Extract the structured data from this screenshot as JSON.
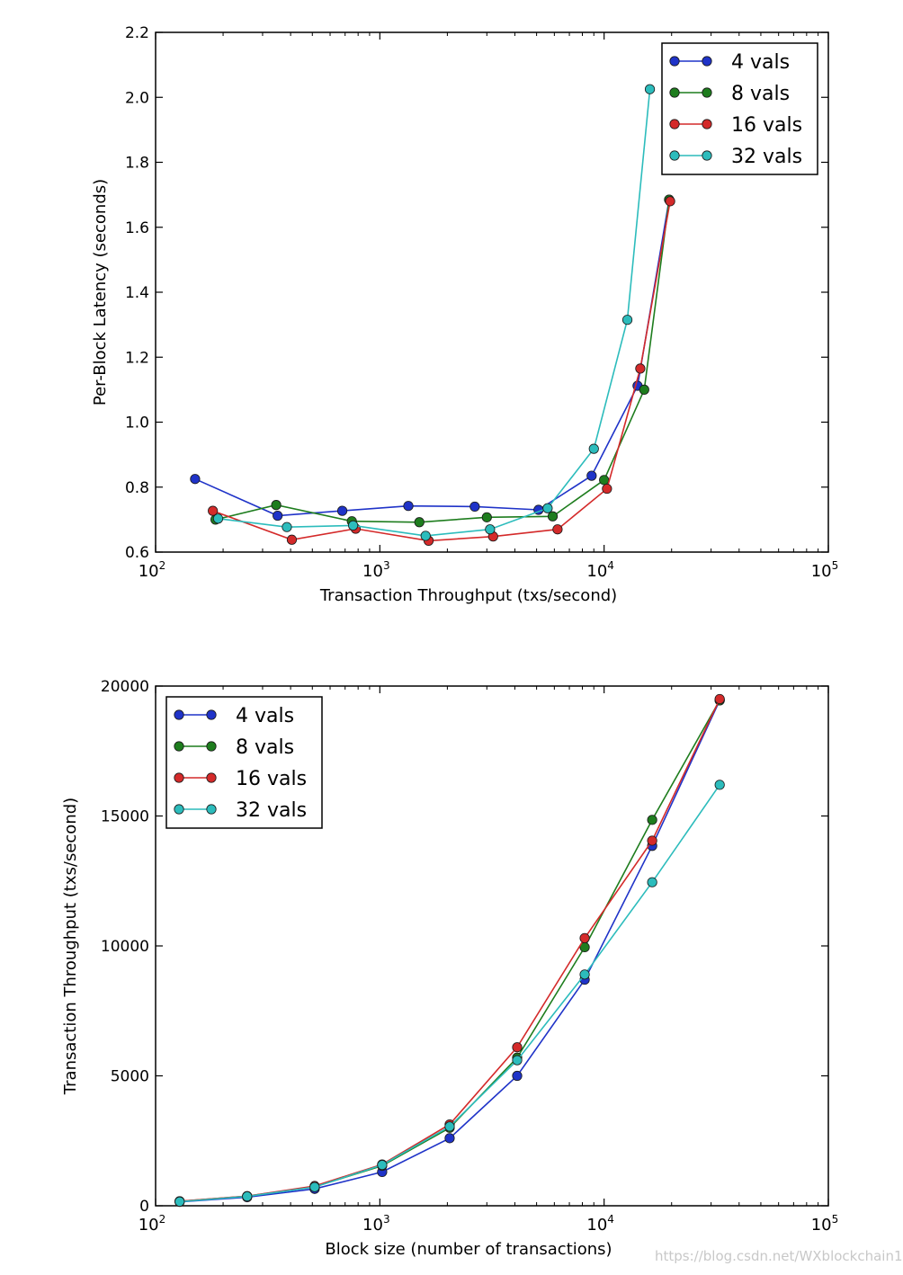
{
  "watermark": "https://blog.csdn.net/WXblockchain1",
  "chart_data": [
    {
      "type": "line",
      "xscale": "log",
      "xlim": [
        100,
        100000
      ],
      "ylim": [
        0.6,
        2.2
      ],
      "xticks": [
        100,
        1000,
        10000,
        100000
      ],
      "xtick_labels": [
        {
          "base": "10",
          "exp": "2"
        },
        {
          "base": "10",
          "exp": "3"
        },
        {
          "base": "10",
          "exp": "4"
        },
        {
          "base": "10",
          "exp": "5"
        }
      ],
      "yticks": [
        0.6,
        0.8,
        1.0,
        1.2,
        1.4,
        1.6,
        1.8,
        2.0,
        2.2
      ],
      "ytick_labels": [
        "0.6",
        "0.8",
        "1.0",
        "1.2",
        "1.4",
        "1.6",
        "1.8",
        "2.0",
        "2.2"
      ],
      "title": "",
      "xlabel": "Transaction Throughput (txs/second)",
      "ylabel": "Per-Block Latency (seconds)",
      "grid": false,
      "legend_position": "top-right",
      "series": [
        {
          "name": "4 vals",
          "color": "#1f33c8",
          "x": [
            150,
            350,
            680,
            1340,
            2650,
            5100,
            8800,
            14100,
            19500
          ],
          "y": [
            0.825,
            0.712,
            0.727,
            0.742,
            0.74,
            0.73,
            0.835,
            1.112,
            1.685
          ]
        },
        {
          "name": "8 vals",
          "color": "#1e7d1e",
          "x": [
            185,
            345,
            750,
            1500,
            3000,
            5900,
            10000,
            15100,
            19500
          ],
          "y": [
            0.7,
            0.745,
            0.695,
            0.692,
            0.707,
            0.71,
            0.822,
            1.1,
            1.685
          ]
        },
        {
          "name": "16 vals",
          "color": "#d42a2a",
          "x": [
            180,
            405,
            780,
            1650,
            3200,
            6200,
            10300,
            14500,
            19700
          ],
          "y": [
            0.727,
            0.638,
            0.672,
            0.635,
            0.648,
            0.67,
            0.795,
            1.165,
            1.68
          ]
        },
        {
          "name": "32 vals",
          "color": "#2cbcbc",
          "x": [
            190,
            385,
            760,
            1600,
            3100,
            5600,
            9000,
            12700,
            16000
          ],
          "y": [
            0.703,
            0.677,
            0.682,
            0.65,
            0.67,
            0.735,
            0.918,
            1.315,
            2.025
          ]
        }
      ]
    },
    {
      "type": "line",
      "xscale": "log",
      "xlim": [
        100,
        100000
      ],
      "ylim": [
        0,
        20000
      ],
      "xticks": [
        100,
        1000,
        10000,
        100000
      ],
      "xtick_labels": [
        {
          "base": "10",
          "exp": "2"
        },
        {
          "base": "10",
          "exp": "3"
        },
        {
          "base": "10",
          "exp": "4"
        },
        {
          "base": "10",
          "exp": "5"
        }
      ],
      "yticks": [
        0,
        5000,
        10000,
        15000,
        20000
      ],
      "ytick_labels": [
        "0",
        "5000",
        "10000",
        "15000",
        "20000"
      ],
      "title": "",
      "xlabel": "Block size (number of transactions)",
      "ylabel": "Transaction Throughput (txs/second)",
      "grid": false,
      "legend_position": "top-left",
      "series": [
        {
          "name": "4 vals",
          "color": "#1f33c8",
          "x": [
            128,
            256,
            512,
            1024,
            2048,
            4096,
            8192,
            16384,
            32768
          ],
          "y": [
            150,
            330,
            650,
            1300,
            2600,
            5000,
            8700,
            13850,
            19450
          ]
        },
        {
          "name": "8 vals",
          "color": "#1e7d1e",
          "x": [
            128,
            256,
            512,
            1024,
            2048,
            4096,
            8192,
            16384,
            32768
          ],
          "y": [
            170,
            370,
            730,
            1540,
            3000,
            5700,
            9950,
            14850,
            19450
          ]
        },
        {
          "name": "16 vals",
          "color": "#d42a2a",
          "x": [
            128,
            256,
            512,
            1024,
            2048,
            4096,
            8192,
            16384,
            32768
          ],
          "y": [
            175,
            370,
            760,
            1590,
            3130,
            6100,
            10300,
            14050,
            19500
          ]
        },
        {
          "name": "32 vals",
          "color": "#2cbcbc",
          "x": [
            128,
            256,
            512,
            1024,
            2048,
            4096,
            8192,
            16384,
            32768
          ],
          "y": [
            160,
            360,
            720,
            1570,
            3050,
            5600,
            8900,
            12450,
            16200
          ]
        }
      ]
    }
  ]
}
